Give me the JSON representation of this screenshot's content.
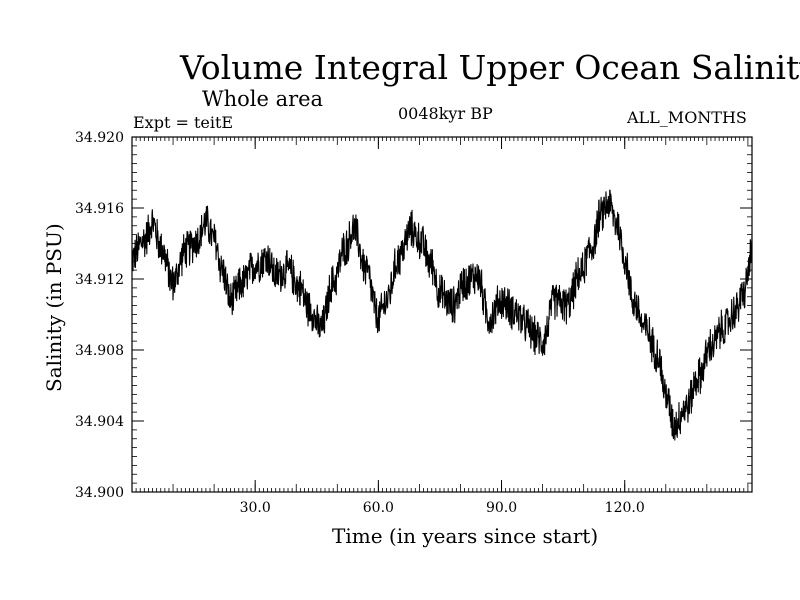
{
  "chart_data": {
    "type": "line",
    "title": "Volume Integral Upper Ocean Salinity",
    "subtitle": "Whole area",
    "experiment": "Expt = teitE",
    "period": "0048kyr BP",
    "months": "ALL_MONTHS",
    "xlabel": "Time (in years since start)",
    "ylabel": "Salinity (in PSU)",
    "xlim": [
      0,
      151
    ],
    "ylim": [
      34.9,
      34.92
    ],
    "x_ticks": [
      30,
      60,
      90,
      120
    ],
    "x_tick_labels": [
      "30.0",
      "60.0",
      "90.0",
      "120.0"
    ],
    "y_ticks": [
      34.9,
      34.904,
      34.908,
      34.912,
      34.916,
      34.92
    ],
    "y_tick_labels": [
      "34.900",
      "34.904",
      "34.908",
      "34.912",
      "34.916",
      "34.920"
    ],
    "grid": false,
    "series": [
      {
        "name": "salinity",
        "color": "#000000",
        "noise_amplitude": 0.0012,
        "x": [
          0,
          3,
          5,
          7,
          10,
          13,
          16,
          18,
          20,
          22,
          24,
          27,
          30,
          33,
          35,
          38,
          41,
          43,
          46,
          49,
          52,
          54,
          57,
          60,
          62,
          65,
          68,
          70,
          73,
          75,
          78,
          81,
          84,
          87,
          90,
          93,
          96,
          98,
          100,
          103,
          106,
          109,
          112,
          114,
          116,
          118,
          120,
          122,
          125,
          128,
          130,
          132,
          135,
          138,
          141,
          144,
          147,
          149,
          151
        ],
        "values": [
          34.9132,
          34.9142,
          34.9152,
          34.9138,
          34.9118,
          34.9136,
          34.9142,
          34.9152,
          34.9142,
          34.9125,
          34.9108,
          34.9118,
          34.9128,
          34.9132,
          34.9122,
          34.9125,
          34.9115,
          34.9104,
          34.9092,
          34.9118,
          34.9138,
          34.9148,
          34.9125,
          34.9098,
          34.9108,
          34.9132,
          34.9148,
          34.9142,
          34.9128,
          34.9112,
          34.9105,
          34.9118,
          34.9122,
          34.9098,
          34.9108,
          34.9102,
          34.9094,
          34.9088,
          34.9085,
          34.9108,
          34.9105,
          34.9122,
          34.9138,
          34.9155,
          34.9163,
          34.9152,
          34.9132,
          34.9108,
          34.9092,
          34.9078,
          34.9055,
          34.9038,
          34.9048,
          34.9065,
          34.9082,
          34.9092,
          34.9102,
          34.9112,
          34.9135
        ]
      }
    ]
  }
}
